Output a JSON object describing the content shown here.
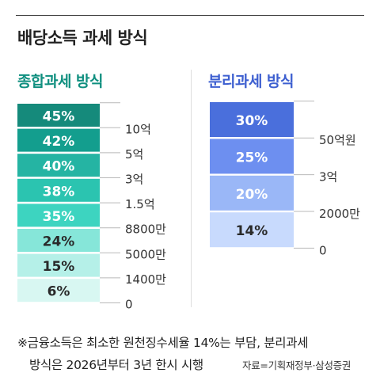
{
  "title": "배당소득 과세 방식",
  "chart_data": [
    {
      "type": "bar",
      "title": "종합과세 방식",
      "title_color": "#0f8f7f",
      "rates": [
        "45%",
        "42%",
        "40%",
        "38%",
        "35%",
        "24%",
        "15%",
        "6%"
      ],
      "colors": [
        "#158a7b",
        "#139e8e",
        "#25b4a3",
        "#2bc4b0",
        "#3dd4c0",
        "#86e6d9",
        "#b5f0e8",
        "#d8f7f2"
      ],
      "thresholds": [
        "10억",
        "5억",
        "3억",
        "1.5억",
        "8800만",
        "5000만",
        "1400만",
        "0"
      ]
    },
    {
      "type": "bar",
      "title": "분리과세 방식",
      "title_color": "#3d5fd0",
      "rates": [
        "30%",
        "25%",
        "20%",
        "14%"
      ],
      "colors": [
        "#4a6fdc",
        "#6d8ff0",
        "#9ab7f7",
        "#c8dafd"
      ],
      "thresholds": [
        "50억원",
        "3억",
        "2000만",
        "0"
      ]
    }
  ],
  "note": {
    "line1": "※금융소득은 최소한 원천징수세율 14%는 부담, 분리과세",
    "line2": "방식은 2026년부터 3년 한시 시행"
  },
  "source": "자료=기획재정부·삼성증권"
}
